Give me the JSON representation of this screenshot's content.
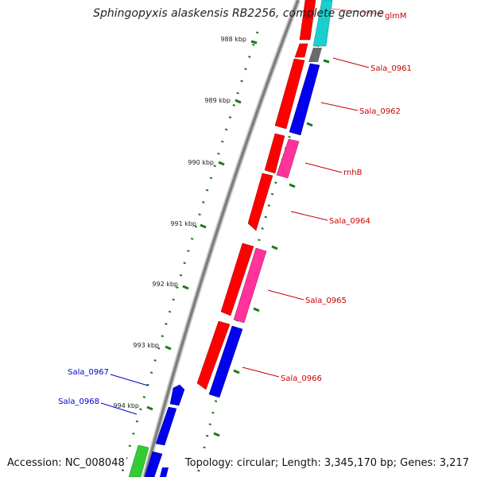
{
  "title": "Sphingopyxis alaskensis RB2256, complete genome",
  "footer": {
    "accession": "Accession: NC_008048",
    "summary": "Topology: circular; Length: 3,345,170 bp; Genes: 3,217"
  },
  "colors": {
    "backbone": "#8a8a8a",
    "tick": "#1a7a1a",
    "forward_label": "#cc0000",
    "reverse_label": "#0000cc",
    "red_gene": "#ff0000",
    "blue_gene": "#0000ee",
    "pink_gene": "#ff3399",
    "cyan_gene": "#19cfcf",
    "gray_gene": "#6b6b6b",
    "green_gene": "#33cc33"
  },
  "scale": {
    "labels": [
      "988 kbp",
      "989 kbp",
      "990 kbp",
      "991 kbp",
      "992 kbp",
      "993 kbp",
      "994 kbp"
    ]
  },
  "genes": [
    {
      "label": "glmM",
      "strand": "forward"
    },
    {
      "label": "Sala_0961",
      "strand": "forward"
    },
    {
      "label": "Sala_0962",
      "strand": "forward"
    },
    {
      "label": "rnhB",
      "strand": "forward"
    },
    {
      "label": "Sala_0964",
      "strand": "forward"
    },
    {
      "label": "Sala_0965",
      "strand": "forward"
    },
    {
      "label": "Sala_0966",
      "strand": "forward"
    },
    {
      "label": "Sala_0967",
      "strand": "reverse"
    },
    {
      "label": "Sala_0968",
      "strand": "reverse"
    }
  ]
}
